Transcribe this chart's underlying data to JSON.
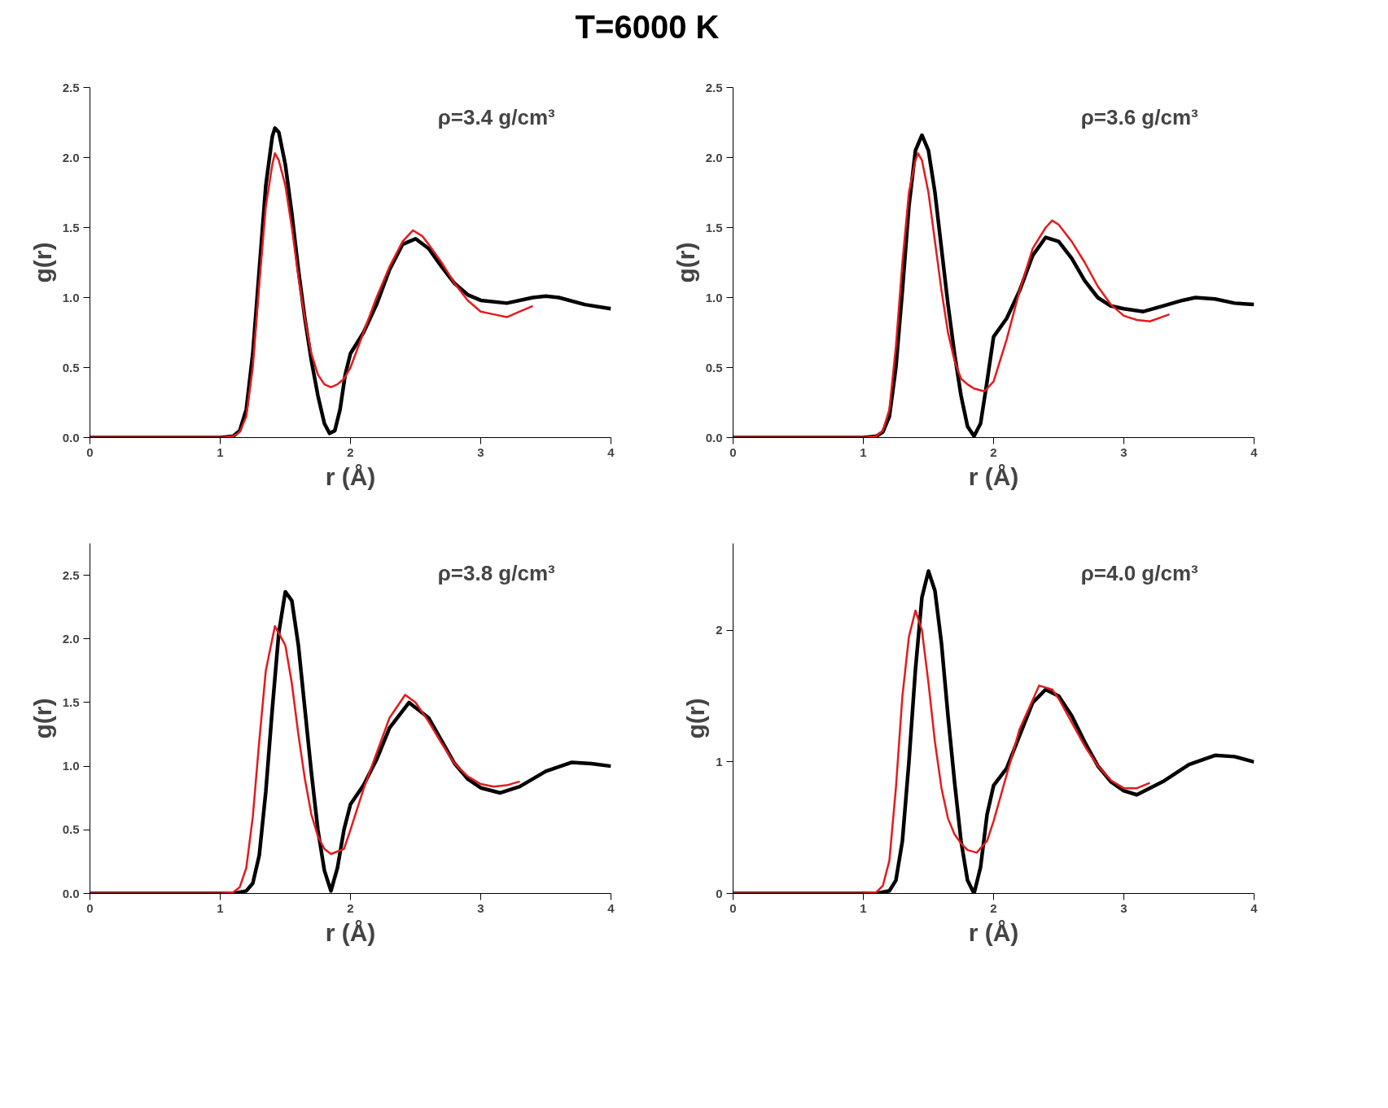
{
  "chart_data": [
    {
      "type": "line",
      "title": "T=6000 K",
      "xlabel": "r (Å)",
      "ylabel": "g(r)",
      "annotations": [
        "ρ=3.4 g/cm³"
      ],
      "xlim": [
        0,
        4
      ],
      "ylim": [
        0,
        2.5
      ],
      "xticks": [
        0,
        1,
        2,
        3,
        4
      ],
      "yticks": [
        {
          "value": 0,
          "label": "0.0"
        },
        {
          "value": 0.5,
          "label": "0.5"
        },
        {
          "value": 1,
          "label": "1.0"
        },
        {
          "value": 1.5,
          "label": "1.5"
        },
        {
          "value": 2,
          "label": "2.0"
        },
        {
          "value": 2.5,
          "label": "2.5"
        }
      ],
      "series": [
        {
          "color": "#000000",
          "x": [
            0,
            1.0,
            1.1,
            1.15,
            1.2,
            1.25,
            1.3,
            1.35,
            1.4,
            1.42,
            1.45,
            1.5,
            1.55,
            1.6,
            1.65,
            1.7,
            1.75,
            1.8,
            1.84,
            1.88,
            1.92,
            1.96,
            2.0,
            2.1,
            2.2,
            2.3,
            2.4,
            2.5,
            2.6,
            2.7,
            2.8,
            2.9,
            3.0,
            3.2,
            3.4,
            3.5,
            3.6,
            3.8,
            4.0
          ],
          "values": [
            0,
            0,
            0.01,
            0.05,
            0.2,
            0.6,
            1.2,
            1.8,
            2.15,
            2.21,
            2.18,
            1.95,
            1.6,
            1.2,
            0.85,
            0.55,
            0.3,
            0.1,
            0.03,
            0.05,
            0.2,
            0.45,
            0.6,
            0.75,
            0.95,
            1.2,
            1.38,
            1.42,
            1.35,
            1.22,
            1.1,
            1.02,
            0.98,
            0.96,
            1.0,
            1.01,
            1.0,
            0.95,
            0.92
          ]
        },
        {
          "color": "#e41a1c",
          "x": [
            0,
            1.0,
            1.1,
            1.15,
            1.2,
            1.25,
            1.3,
            1.35,
            1.4,
            1.42,
            1.45,
            1.5,
            1.55,
            1.6,
            1.65,
            1.7,
            1.75,
            1.8,
            1.85,
            1.9,
            1.95,
            2.0,
            2.1,
            2.2,
            2.3,
            2.4,
            2.48,
            2.55,
            2.6,
            2.7,
            2.8,
            2.9,
            3.0,
            3.1,
            3.2,
            3.3,
            3.4
          ],
          "values": [
            0,
            0,
            0.01,
            0.04,
            0.15,
            0.5,
            1.1,
            1.65,
            1.95,
            2.03,
            1.98,
            1.8,
            1.5,
            1.15,
            0.85,
            0.6,
            0.45,
            0.38,
            0.36,
            0.38,
            0.42,
            0.5,
            0.75,
            1.0,
            1.22,
            1.4,
            1.48,
            1.44,
            1.38,
            1.25,
            1.1,
            0.98,
            0.9,
            0.88,
            0.86,
            0.9,
            0.94
          ]
        }
      ]
    },
    {
      "type": "line",
      "xlabel": "r (Å)",
      "ylabel": "g(r)",
      "annotations": [
        "ρ=3.6 g/cm³"
      ],
      "xlim": [
        0,
        4
      ],
      "ylim": [
        0,
        2.5
      ],
      "xticks": [
        0,
        1,
        2,
        3,
        4
      ],
      "yticks": [
        {
          "value": 0,
          "label": "0.0"
        },
        {
          "value": 0.5,
          "label": "0.5"
        },
        {
          "value": 1,
          "label": "1.0"
        },
        {
          "value": 1.5,
          "label": "1.5"
        },
        {
          "value": 2,
          "label": "2.0"
        },
        {
          "value": 2.5,
          "label": "2.5"
        }
      ],
      "series": [
        {
          "color": "#000000",
          "x": [
            0,
            1.0,
            1.1,
            1.15,
            1.2,
            1.25,
            1.3,
            1.35,
            1.4,
            1.45,
            1.5,
            1.55,
            1.6,
            1.65,
            1.7,
            1.75,
            1.8,
            1.85,
            1.9,
            1.95,
            2.0,
            2.1,
            2.2,
            2.3,
            2.4,
            2.5,
            2.6,
            2.7,
            2.8,
            2.9,
            3.0,
            3.15,
            3.3,
            3.45,
            3.55,
            3.7,
            3.85,
            4.0
          ],
          "values": [
            0,
            0,
            0.01,
            0.04,
            0.15,
            0.5,
            1.05,
            1.65,
            2.05,
            2.16,
            2.05,
            1.75,
            1.35,
            0.95,
            0.6,
            0.3,
            0.08,
            0.01,
            0.1,
            0.4,
            0.72,
            0.85,
            1.05,
            1.3,
            1.43,
            1.4,
            1.28,
            1.12,
            1.0,
            0.94,
            0.92,
            0.9,
            0.94,
            0.98,
            1.0,
            0.99,
            0.96,
            0.95
          ]
        },
        {
          "color": "#e41a1c",
          "x": [
            0,
            1.0,
            1.1,
            1.15,
            1.2,
            1.25,
            1.3,
            1.35,
            1.4,
            1.42,
            1.45,
            1.5,
            1.55,
            1.6,
            1.65,
            1.7,
            1.75,
            1.8,
            1.85,
            1.93,
            2.0,
            2.1,
            2.2,
            2.3,
            2.4,
            2.45,
            2.5,
            2.6,
            2.7,
            2.8,
            2.9,
            3.0,
            3.1,
            3.2,
            3.35
          ],
          "values": [
            0,
            0,
            0.01,
            0.05,
            0.2,
            0.65,
            1.25,
            1.75,
            1.98,
            2.03,
            1.98,
            1.75,
            1.4,
            1.05,
            0.75,
            0.55,
            0.42,
            0.38,
            0.35,
            0.33,
            0.4,
            0.7,
            1.05,
            1.35,
            1.5,
            1.55,
            1.52,
            1.4,
            1.25,
            1.08,
            0.95,
            0.87,
            0.84,
            0.83,
            0.88
          ]
        }
      ]
    },
    {
      "type": "line",
      "xlabel": "r (Å)",
      "ylabel": "g(r)",
      "annotations": [
        "ρ=3.8 g/cm³"
      ],
      "xlim": [
        0,
        4
      ],
      "ylim": [
        0,
        2.75
      ],
      "xticks": [
        0,
        1,
        2,
        3,
        4
      ],
      "yticks": [
        {
          "value": 0,
          "label": "0.0"
        },
        {
          "value": 0.5,
          "label": "0.5"
        },
        {
          "value": 1,
          "label": "1.0"
        },
        {
          "value": 1.5,
          "label": "1.5"
        },
        {
          "value": 2,
          "label": "2.0"
        },
        {
          "value": 2.5,
          "label": "2.5"
        }
      ],
      "series": [
        {
          "color": "#000000",
          "x": [
            0,
            1.1,
            1.2,
            1.25,
            1.3,
            1.35,
            1.4,
            1.45,
            1.5,
            1.55,
            1.6,
            1.65,
            1.7,
            1.75,
            1.8,
            1.85,
            1.9,
            1.95,
            2.0,
            2.1,
            2.2,
            2.3,
            2.45,
            2.6,
            2.7,
            2.8,
            2.9,
            3.0,
            3.15,
            3.3,
            3.5,
            3.7,
            3.85,
            4.0
          ],
          "values": [
            0,
            0,
            0.02,
            0.08,
            0.3,
            0.8,
            1.45,
            2.05,
            2.37,
            2.3,
            1.95,
            1.45,
            0.95,
            0.5,
            0.18,
            0.02,
            0.2,
            0.5,
            0.7,
            0.85,
            1.05,
            1.3,
            1.5,
            1.38,
            1.2,
            1.02,
            0.9,
            0.83,
            0.79,
            0.84,
            0.96,
            1.03,
            1.02,
            1.0
          ]
        },
        {
          "color": "#e41a1c",
          "x": [
            0,
            1.0,
            1.1,
            1.15,
            1.2,
            1.25,
            1.3,
            1.35,
            1.42,
            1.5,
            1.55,
            1.6,
            1.65,
            1.7,
            1.75,
            1.8,
            1.85,
            1.95,
            2.0,
            2.1,
            2.2,
            2.3,
            2.42,
            2.5,
            2.6,
            2.7,
            2.8,
            2.9,
            3.0,
            3.1,
            3.2,
            3.3
          ],
          "values": [
            0,
            0,
            0.01,
            0.05,
            0.2,
            0.6,
            1.2,
            1.75,
            2.1,
            1.95,
            1.65,
            1.25,
            0.9,
            0.62,
            0.45,
            0.35,
            0.31,
            0.35,
            0.5,
            0.82,
            1.1,
            1.38,
            1.56,
            1.5,
            1.35,
            1.18,
            1.02,
            0.92,
            0.86,
            0.84,
            0.85,
            0.88
          ]
        }
      ]
    },
    {
      "type": "line",
      "xlabel": "r (Å)",
      "ylabel": "g(r)",
      "annotations": [
        "ρ=4.0 g/cm³"
      ],
      "xlim": [
        0,
        4
      ],
      "ylim": [
        0,
        2.66
      ],
      "xticks": [
        0,
        1,
        2,
        3,
        4
      ],
      "yticks": [
        0,
        1,
        2
      ],
      "series": [
        {
          "color": "#000000",
          "x": [
            0,
            1.1,
            1.2,
            1.25,
            1.3,
            1.35,
            1.4,
            1.45,
            1.5,
            1.55,
            1.6,
            1.65,
            1.7,
            1.75,
            1.8,
            1.85,
            1.9,
            1.95,
            2.0,
            2.1,
            2.2,
            2.3,
            2.4,
            2.5,
            2.6,
            2.7,
            2.8,
            2.9,
            3.0,
            3.1,
            3.3,
            3.5,
            3.7,
            3.85,
            4.0
          ],
          "values": [
            0,
            0,
            0.02,
            0.1,
            0.4,
            1.0,
            1.7,
            2.25,
            2.45,
            2.3,
            1.9,
            1.35,
            0.85,
            0.4,
            0.1,
            0.0,
            0.2,
            0.6,
            0.82,
            0.95,
            1.2,
            1.45,
            1.55,
            1.5,
            1.35,
            1.15,
            0.97,
            0.85,
            0.78,
            0.75,
            0.85,
            0.98,
            1.05,
            1.04,
            1.0
          ]
        },
        {
          "color": "#e41a1c",
          "x": [
            0,
            1.0,
            1.1,
            1.15,
            1.2,
            1.25,
            1.3,
            1.35,
            1.4,
            1.45,
            1.5,
            1.55,
            1.6,
            1.65,
            1.7,
            1.75,
            1.8,
            1.87,
            1.95,
            2.0,
            2.1,
            2.2,
            2.35,
            2.45,
            2.5,
            2.6,
            2.7,
            2.8,
            2.9,
            3.0,
            3.1,
            3.2
          ],
          "values": [
            0,
            0,
            0.01,
            0.06,
            0.25,
            0.8,
            1.5,
            1.95,
            2.15,
            2.0,
            1.6,
            1.15,
            0.8,
            0.57,
            0.45,
            0.38,
            0.33,
            0.31,
            0.4,
            0.55,
            0.9,
            1.25,
            1.58,
            1.55,
            1.48,
            1.3,
            1.12,
            0.97,
            0.86,
            0.8,
            0.8,
            0.84
          ]
        }
      ]
    }
  ]
}
